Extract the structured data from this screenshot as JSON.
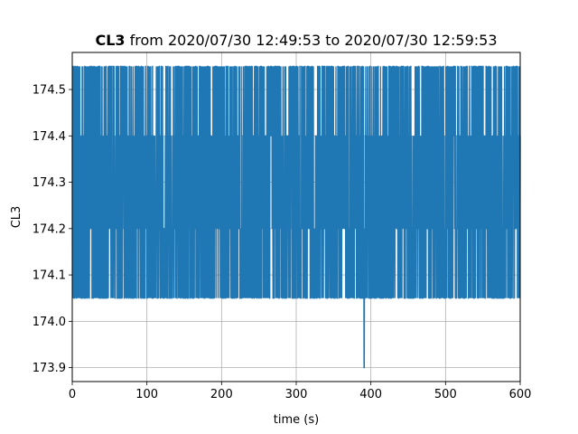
{
  "chart_data": {
    "type": "line",
    "title_bold": "CL3",
    "title_rest": " from 2020/07/30 12:49:53 to 2020/07/30 12:59:53",
    "xlabel": "time (s)",
    "ylabel": "CL3",
    "xlim": [
      0,
      600
    ],
    "ylim": [
      173.87,
      174.58
    ],
    "xticks": [
      0,
      100,
      200,
      300,
      400,
      500,
      600
    ],
    "yticks": [
      173.9,
      174.0,
      174.1,
      174.2,
      174.3,
      174.4,
      174.5
    ],
    "grid": true,
    "series": [
      {
        "color": "#1f77b4",
        "levels": [
          174.05,
          174.2,
          174.4,
          174.55
        ],
        "min_value": 173.9,
        "min_value_at_x": 391,
        "x_range": [
          0,
          600
        ],
        "description_values_oscillate_between": [
          174.05,
          174.55
        ]
      }
    ]
  }
}
